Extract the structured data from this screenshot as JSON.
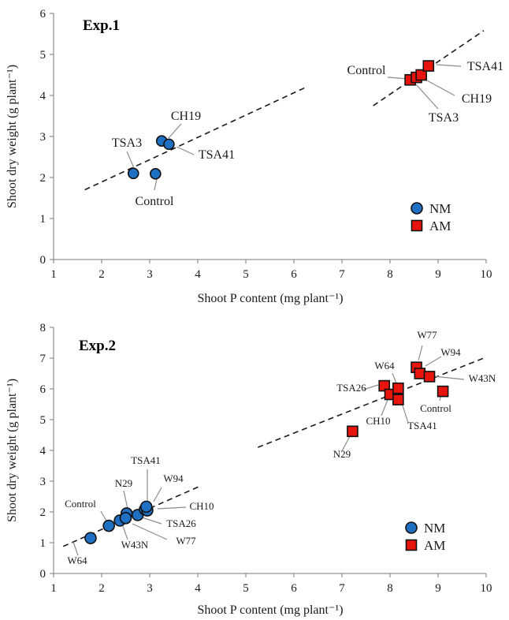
{
  "figure": {
    "colors": {
      "NM": "#1f6fc2",
      "AM": "#e8150f",
      "trend": "#1a1a1a",
      "leader": "#8c8c8c"
    },
    "markers": {
      "NM": "circle",
      "AM": "square"
    }
  },
  "chart_data": [
    {
      "type": "scatter",
      "title": "Exp.1",
      "xlabel": "Shoot P content (mg plant⁻¹)",
      "ylabel": "Shoot dry weight (g plant⁻¹)",
      "xlim": [
        1,
        10
      ],
      "ylim": [
        0,
        6
      ],
      "xticks": [
        1,
        2,
        3,
        4,
        5,
        6,
        7,
        8,
        9,
        10
      ],
      "yticks": [
        0,
        1,
        2,
        3,
        4,
        5,
        6
      ],
      "grid": false,
      "legend_position": "bottom-right",
      "series": [
        {
          "name": "NM",
          "points": [
            {
              "label": "Control",
              "x": 3.12,
              "y": 2.09
            },
            {
              "label": "TSA3",
              "x": 2.66,
              "y": 2.1
            },
            {
              "label": "CH19",
              "x": 3.25,
              "y": 2.89
            },
            {
              "label": "TSA41",
              "x": 3.4,
              "y": 2.81
            }
          ],
          "trendline": [
            [
              1.65,
              1.7
            ],
            [
              6.25,
              4.2
            ]
          ]
        },
        {
          "name": "AM",
          "points": [
            {
              "label": "Control",
              "x": 8.42,
              "y": 4.38
            },
            {
              "label": "TSA3",
              "x": 8.55,
              "y": 4.44
            },
            {
              "label": "CH19",
              "x": 8.65,
              "y": 4.5
            },
            {
              "label": "TSA41",
              "x": 8.8,
              "y": 4.72
            }
          ],
          "trendline": [
            [
              7.65,
              3.75
            ],
            [
              9.95,
              5.58
            ]
          ]
        }
      ]
    },
    {
      "type": "scatter",
      "title": "Exp.2",
      "xlabel": "Shoot P content (mg plant⁻¹)",
      "ylabel": "Shoot dry weight (g plant⁻¹)",
      "xlim": [
        1,
        10
      ],
      "ylim": [
        0,
        8
      ],
      "xticks": [
        1,
        2,
        3,
        4,
        5,
        6,
        7,
        8,
        9,
        10
      ],
      "yticks": [
        0,
        1,
        2,
        3,
        4,
        5,
        6,
        7,
        8
      ],
      "grid": false,
      "legend_position": "bottom-right",
      "series": [
        {
          "name": "NM",
          "points": [
            {
              "label": "W64",
              "x": 1.77,
              "y": 1.15
            },
            {
              "label": "Control",
              "x": 2.15,
              "y": 1.55
            },
            {
              "label": "W43N",
              "x": 2.38,
              "y": 1.72
            },
            {
              "label": "N29",
              "x": 2.52,
              "y": 1.95
            },
            {
              "label": "W77",
              "x": 2.5,
              "y": 1.8
            },
            {
              "label": "TSA26",
              "x": 2.75,
              "y": 1.9
            },
            {
              "label": "W94",
              "x": 2.9,
              "y": 2.08
            },
            {
              "label": "CH10",
              "x": 2.95,
              "y": 2.05
            },
            {
              "label": "TSA41",
              "x": 2.93,
              "y": 2.17
            }
          ],
          "trendline": [
            [
              1.2,
              0.88
            ],
            [
              4.05,
              2.84
            ]
          ]
        },
        {
          "name": "AM",
          "points": [
            {
              "label": "N29",
              "x": 7.22,
              "y": 4.62
            },
            {
              "label": "TSA26",
              "x": 7.88,
              "y": 6.1
            },
            {
              "label": "CH10",
              "x": 8.0,
              "y": 5.82
            },
            {
              "label": "TSA41",
              "x": 8.17,
              "y": 5.65
            },
            {
              "label": "W64",
              "x": 8.17,
              "y": 6.02
            },
            {
              "label": "W77",
              "x": 8.55,
              "y": 6.7
            },
            {
              "label": "W94",
              "x": 8.62,
              "y": 6.5
            },
            {
              "label": "W43N",
              "x": 8.82,
              "y": 6.4
            },
            {
              "label": "Control",
              "x": 9.1,
              "y": 5.92
            }
          ],
          "trendline": [
            [
              5.25,
              4.1
            ],
            [
              9.95,
              7.0
            ]
          ]
        }
      ]
    }
  ]
}
